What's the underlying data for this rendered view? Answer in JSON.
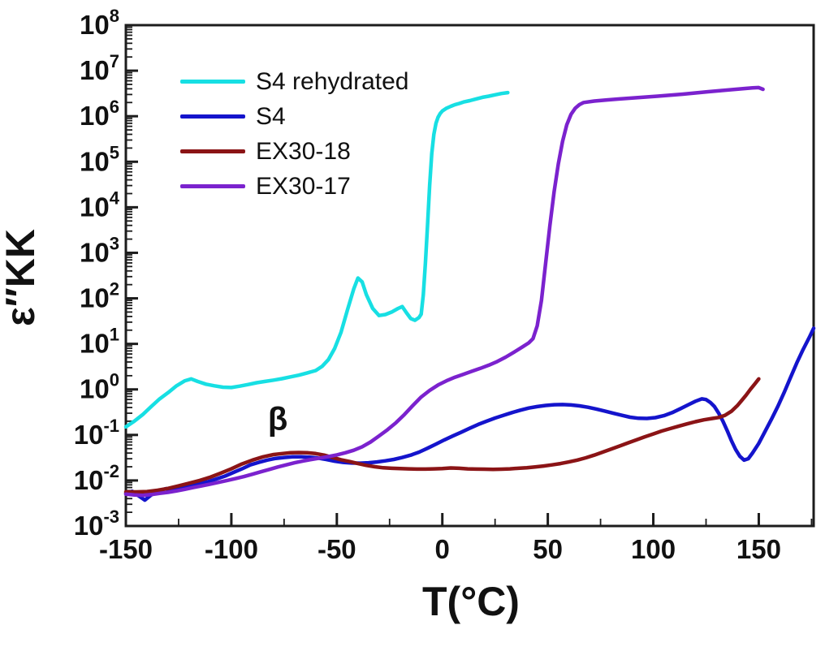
{
  "chart_data": {
    "type": "line",
    "title": "",
    "xlabel": "T(°C)",
    "ylabel": "ε″KK",
    "grid": false,
    "legend_position": "upper-left-inside",
    "xlim": [
      -150,
      176
    ],
    "ylim_exp": [
      -3,
      8
    ],
    "x_major_ticks": [
      -150,
      -100,
      -50,
      0,
      50,
      100,
      150
    ],
    "x_minor_step": 25,
    "y_exponents": [
      8,
      7,
      6,
      5,
      4,
      3,
      2,
      1,
      0,
      -1,
      -2,
      -3
    ],
    "annotation": {
      "text": "β",
      "T": -78,
      "value": 0.13
    },
    "series": [
      {
        "name": "S4 rehydrated",
        "color": "#17dfe3",
        "points": [
          [
            -150,
            0.15
          ],
          [
            -146,
            0.2
          ],
          [
            -142,
            0.28
          ],
          [
            -138,
            0.42
          ],
          [
            -134,
            0.62
          ],
          [
            -130,
            0.85
          ],
          [
            -126,
            1.2
          ],
          [
            -122,
            1.55
          ],
          [
            -119,
            1.7
          ],
          [
            -116,
            1.5
          ],
          [
            -112,
            1.3
          ],
          [
            -108,
            1.2
          ],
          [
            -104,
            1.12
          ],
          [
            -100,
            1.1
          ],
          [
            -96,
            1.18
          ],
          [
            -92,
            1.28
          ],
          [
            -88,
            1.4
          ],
          [
            -84,
            1.5
          ],
          [
            -80,
            1.6
          ],
          [
            -76,
            1.72
          ],
          [
            -72,
            1.88
          ],
          [
            -68,
            2.05
          ],
          [
            -64,
            2.3
          ],
          [
            -60,
            2.6
          ],
          [
            -57,
            3.2
          ],
          [
            -54,
            4.5
          ],
          [
            -51,
            8
          ],
          [
            -48,
            18
          ],
          [
            -45,
            55
          ],
          [
            -42,
            160
          ],
          [
            -40,
            280
          ],
          [
            -38,
            230
          ],
          [
            -36,
            120
          ],
          [
            -33,
            60
          ],
          [
            -30,
            42
          ],
          [
            -27,
            44
          ],
          [
            -24,
            50
          ],
          [
            -21,
            60
          ],
          [
            -19,
            66
          ],
          [
            -17,
            48
          ],
          [
            -15,
            36
          ],
          [
            -13,
            33
          ],
          [
            -11,
            38
          ],
          [
            -10,
            45
          ],
          [
            -9,
            120
          ],
          [
            -8,
            600
          ],
          [
            -7,
            4000
          ],
          [
            -6,
            30000
          ],
          [
            -5,
            150000
          ],
          [
            -4,
            400000
          ],
          [
            -3,
            700000
          ],
          [
            -2,
            950000
          ],
          [
            -1,
            1150000
          ],
          [
            0,
            1300000
          ],
          [
            2,
            1500000
          ],
          [
            4,
            1650000
          ],
          [
            6,
            1800000
          ],
          [
            8,
            1900000
          ],
          [
            10,
            2050000
          ],
          [
            13,
            2200000
          ],
          [
            16,
            2400000
          ],
          [
            19,
            2600000
          ],
          [
            22,
            2750000
          ],
          [
            25,
            2950000
          ],
          [
            28,
            3150000
          ],
          [
            31,
            3300000
          ]
        ]
      },
      {
        "name": "S4",
        "color": "#1414cc",
        "points": [
          [
            -150,
            0.0052
          ],
          [
            -147,
            0.0058
          ],
          [
            -144,
            0.0046
          ],
          [
            -141,
            0.0037
          ],
          [
            -138,
            0.0048
          ],
          [
            -135,
            0.0058
          ],
          [
            -131,
            0.0066
          ],
          [
            -127,
            0.0061
          ],
          [
            -123,
            0.0068
          ],
          [
            -119,
            0.0077
          ],
          [
            -115,
            0.0085
          ],
          [
            -111,
            0.0094
          ],
          [
            -107,
            0.0108
          ],
          [
            -103,
            0.0125
          ],
          [
            -99,
            0.015
          ],
          [
            -95,
            0.018
          ],
          [
            -91,
            0.022
          ],
          [
            -87,
            0.025
          ],
          [
            -83,
            0.028
          ],
          [
            -79,
            0.0305
          ],
          [
            -75,
            0.032
          ],
          [
            -71,
            0.033
          ],
          [
            -67,
            0.033
          ],
          [
            -63,
            0.0325
          ],
          [
            -59,
            0.031
          ],
          [
            -55,
            0.029
          ],
          [
            -51,
            0.0265
          ],
          [
            -47,
            0.025
          ],
          [
            -43,
            0.0242
          ],
          [
            -39,
            0.024
          ],
          [
            -35,
            0.0245
          ],
          [
            -31,
            0.0255
          ],
          [
            -27,
            0.027
          ],
          [
            -23,
            0.029
          ],
          [
            -19,
            0.032
          ],
          [
            -15,
            0.036
          ],
          [
            -11,
            0.042
          ],
          [
            -7,
            0.051
          ],
          [
            -3,
            0.063
          ],
          [
            1,
            0.078
          ],
          [
            5,
            0.095
          ],
          [
            9,
            0.115
          ],
          [
            13,
            0.14
          ],
          [
            17,
            0.17
          ],
          [
            21,
            0.2
          ],
          [
            25,
            0.235
          ],
          [
            29,
            0.27
          ],
          [
            33,
            0.31
          ],
          [
            37,
            0.35
          ],
          [
            41,
            0.39
          ],
          [
            45,
            0.42
          ],
          [
            49,
            0.445
          ],
          [
            53,
            0.46
          ],
          [
            57,
            0.465
          ],
          [
            61,
            0.455
          ],
          [
            65,
            0.435
          ],
          [
            69,
            0.405
          ],
          [
            73,
            0.37
          ],
          [
            77,
            0.335
          ],
          [
            81,
            0.3
          ],
          [
            85,
            0.27
          ],
          [
            89,
            0.245
          ],
          [
            93,
            0.232
          ],
          [
            97,
            0.23
          ],
          [
            101,
            0.24
          ],
          [
            105,
            0.265
          ],
          [
            109,
            0.31
          ],
          [
            113,
            0.38
          ],
          [
            117,
            0.47
          ],
          [
            120,
            0.55
          ],
          [
            123,
            0.62
          ],
          [
            125,
            0.6
          ],
          [
            127,
            0.52
          ],
          [
            129,
            0.42
          ],
          [
            131,
            0.3
          ],
          [
            133,
            0.2
          ],
          [
            135,
            0.125
          ],
          [
            137,
            0.075
          ],
          [
            139,
            0.048
          ],
          [
            141,
            0.034
          ],
          [
            143,
            0.028
          ],
          [
            145,
            0.03
          ],
          [
            147,
            0.04
          ],
          [
            150,
            0.065
          ],
          [
            153,
            0.12
          ],
          [
            156,
            0.22
          ],
          [
            159,
            0.42
          ],
          [
            162,
            0.85
          ],
          [
            165,
            1.8
          ],
          [
            168,
            3.8
          ],
          [
            171,
            7.5
          ],
          [
            174,
            14
          ],
          [
            176,
            22
          ]
        ]
      },
      {
        "name": "EX30-18",
        "color": "#8b1416",
        "points": [
          [
            -150,
            0.0056
          ],
          [
            -145,
            0.0056
          ],
          [
            -140,
            0.0057
          ],
          [
            -135,
            0.0061
          ],
          [
            -130,
            0.0067
          ],
          [
            -125,
            0.0076
          ],
          [
            -120,
            0.0087
          ],
          [
            -115,
            0.01
          ],
          [
            -110,
            0.0118
          ],
          [
            -105,
            0.0145
          ],
          [
            -100,
            0.018
          ],
          [
            -95,
            0.023
          ],
          [
            -90,
            0.028
          ],
          [
            -85,
            0.033
          ],
          [
            -80,
            0.037
          ],
          [
            -76,
            0.039
          ],
          [
            -72,
            0.0405
          ],
          [
            -68,
            0.041
          ],
          [
            -64,
            0.0405
          ],
          [
            -60,
            0.039
          ],
          [
            -56,
            0.036
          ],
          [
            -52,
            0.032
          ],
          [
            -48,
            0.0285
          ],
          [
            -44,
            0.026
          ],
          [
            -40,
            0.0235
          ],
          [
            -36,
            0.0215
          ],
          [
            -32,
            0.02
          ],
          [
            -28,
            0.019
          ],
          [
            -24,
            0.0185
          ],
          [
            -20,
            0.0182
          ],
          [
            -16,
            0.018
          ],
          [
            -12,
            0.0178
          ],
          [
            -8,
            0.0178
          ],
          [
            -4,
            0.018
          ],
          [
            0,
            0.0183
          ],
          [
            4,
            0.0188
          ],
          [
            8,
            0.0185
          ],
          [
            12,
            0.018
          ],
          [
            16,
            0.0178
          ],
          [
            20,
            0.0177
          ],
          [
            24,
            0.0175
          ],
          [
            28,
            0.0177
          ],
          [
            32,
            0.018
          ],
          [
            36,
            0.0185
          ],
          [
            40,
            0.019
          ],
          [
            44,
            0.0198
          ],
          [
            48,
            0.0208
          ],
          [
            52,
            0.022
          ],
          [
            56,
            0.0235
          ],
          [
            60,
            0.0255
          ],
          [
            64,
            0.028
          ],
          [
            68,
            0.0315
          ],
          [
            72,
            0.036
          ],
          [
            76,
            0.042
          ],
          [
            80,
            0.049
          ],
          [
            84,
            0.057
          ],
          [
            88,
            0.067
          ],
          [
            92,
            0.078
          ],
          [
            96,
            0.091
          ],
          [
            100,
            0.105
          ],
          [
            104,
            0.122
          ],
          [
            108,
            0.138
          ],
          [
            112,
            0.155
          ],
          [
            116,
            0.175
          ],
          [
            120,
            0.195
          ],
          [
            124,
            0.215
          ],
          [
            128,
            0.23
          ],
          [
            131,
            0.242
          ],
          [
            134,
            0.27
          ],
          [
            137,
            0.33
          ],
          [
            140,
            0.45
          ],
          [
            142,
            0.58
          ],
          [
            144,
            0.75
          ],
          [
            146,
            1.0
          ],
          [
            148,
            1.3
          ],
          [
            150,
            1.7
          ]
        ]
      },
      {
        "name": "EX30-17",
        "color": "#7b22ce",
        "points": [
          [
            -150,
            0.005
          ],
          [
            -146,
            0.0048
          ],
          [
            -142,
            0.0047
          ],
          [
            -138,
            0.0049
          ],
          [
            -134,
            0.0052
          ],
          [
            -130,
            0.0055
          ],
          [
            -126,
            0.0059
          ],
          [
            -122,
            0.0064
          ],
          [
            -118,
            0.007
          ],
          [
            -114,
            0.0076
          ],
          [
            -110,
            0.0083
          ],
          [
            -106,
            0.0091
          ],
          [
            -102,
            0.01
          ],
          [
            -98,
            0.011
          ],
          [
            -94,
            0.0122
          ],
          [
            -90,
            0.0137
          ],
          [
            -86,
            0.0155
          ],
          [
            -82,
            0.0175
          ],
          [
            -78,
            0.0198
          ],
          [
            -74,
            0.022
          ],
          [
            -70,
            0.0245
          ],
          [
            -66,
            0.0268
          ],
          [
            -62,
            0.029
          ],
          [
            -58,
            0.031
          ],
          [
            -54,
            0.0335
          ],
          [
            -50,
            0.0365
          ],
          [
            -46,
            0.0405
          ],
          [
            -42,
            0.046
          ],
          [
            -38,
            0.055
          ],
          [
            -34,
            0.07
          ],
          [
            -30,
            0.095
          ],
          [
            -26,
            0.13
          ],
          [
            -22,
            0.185
          ],
          [
            -18,
            0.28
          ],
          [
            -14,
            0.44
          ],
          [
            -10,
            0.68
          ],
          [
            -6,
            0.95
          ],
          [
            -2,
            1.25
          ],
          [
            2,
            1.55
          ],
          [
            6,
            1.85
          ],
          [
            10,
            2.15
          ],
          [
            14,
            2.5
          ],
          [
            18,
            2.9
          ],
          [
            22,
            3.4
          ],
          [
            26,
            4.1
          ],
          [
            30,
            5.1
          ],
          [
            34,
            6.6
          ],
          [
            38,
            8.6
          ],
          [
            41,
            10.5
          ],
          [
            43,
            13
          ],
          [
            45,
            25
          ],
          [
            47,
            90
          ],
          [
            49,
            600
          ],
          [
            51,
            4000
          ],
          [
            53,
            22000
          ],
          [
            55,
            90000
          ],
          [
            57,
            280000
          ],
          [
            59,
            650000
          ],
          [
            61,
            1100000
          ],
          [
            63,
            1500000
          ],
          [
            65,
            1800000
          ],
          [
            67,
            2000000
          ],
          [
            72,
            2150000
          ],
          [
            78,
            2280000
          ],
          [
            84,
            2400000
          ],
          [
            90,
            2520000
          ],
          [
            96,
            2630000
          ],
          [
            102,
            2760000
          ],
          [
            108,
            2900000
          ],
          [
            114,
            3050000
          ],
          [
            120,
            3250000
          ],
          [
            126,
            3450000
          ],
          [
            132,
            3650000
          ],
          [
            138,
            3850000
          ],
          [
            143,
            4050000
          ],
          [
            147,
            4200000
          ],
          [
            150,
            4250000
          ],
          [
            152,
            3900000
          ]
        ]
      }
    ]
  }
}
